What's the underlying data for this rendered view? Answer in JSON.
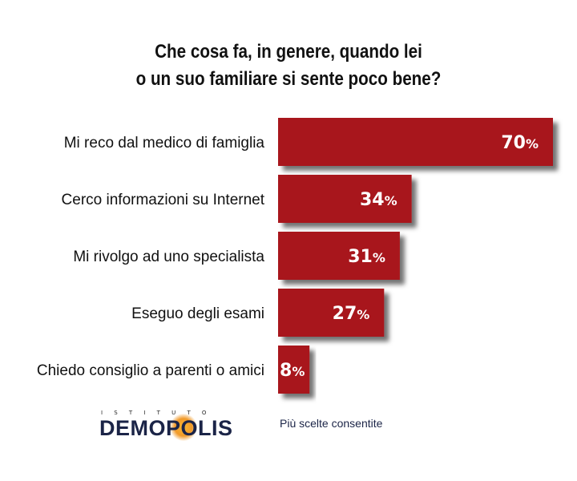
{
  "title_lines": [
    "Che cosa fa, in genere, quando lei",
    "o un suo familiare si sente poco bene?"
  ],
  "chart_data": {
    "type": "bar",
    "orientation": "horizontal",
    "categories": [
      "Mi reco dal medico di famiglia",
      "Cerco informazioni su Internet",
      "Mi rivolgo ad uno specialista",
      "Eseguo degli esami",
      "Chiedo consiglio a parenti o amici"
    ],
    "values": [
      70,
      34,
      31,
      27,
      8
    ],
    "value_labels": [
      "70%",
      "34%",
      "31%",
      "27%",
      "8%"
    ],
    "xlim": [
      0,
      70
    ],
    "grid": false,
    "legend": "none",
    "bar_color": "#a8191b"
  },
  "footer": {
    "logo_top": "ISTITUTO",
    "logo_main": "DEMOPOLIS",
    "note": "Più scelte consentite"
  }
}
